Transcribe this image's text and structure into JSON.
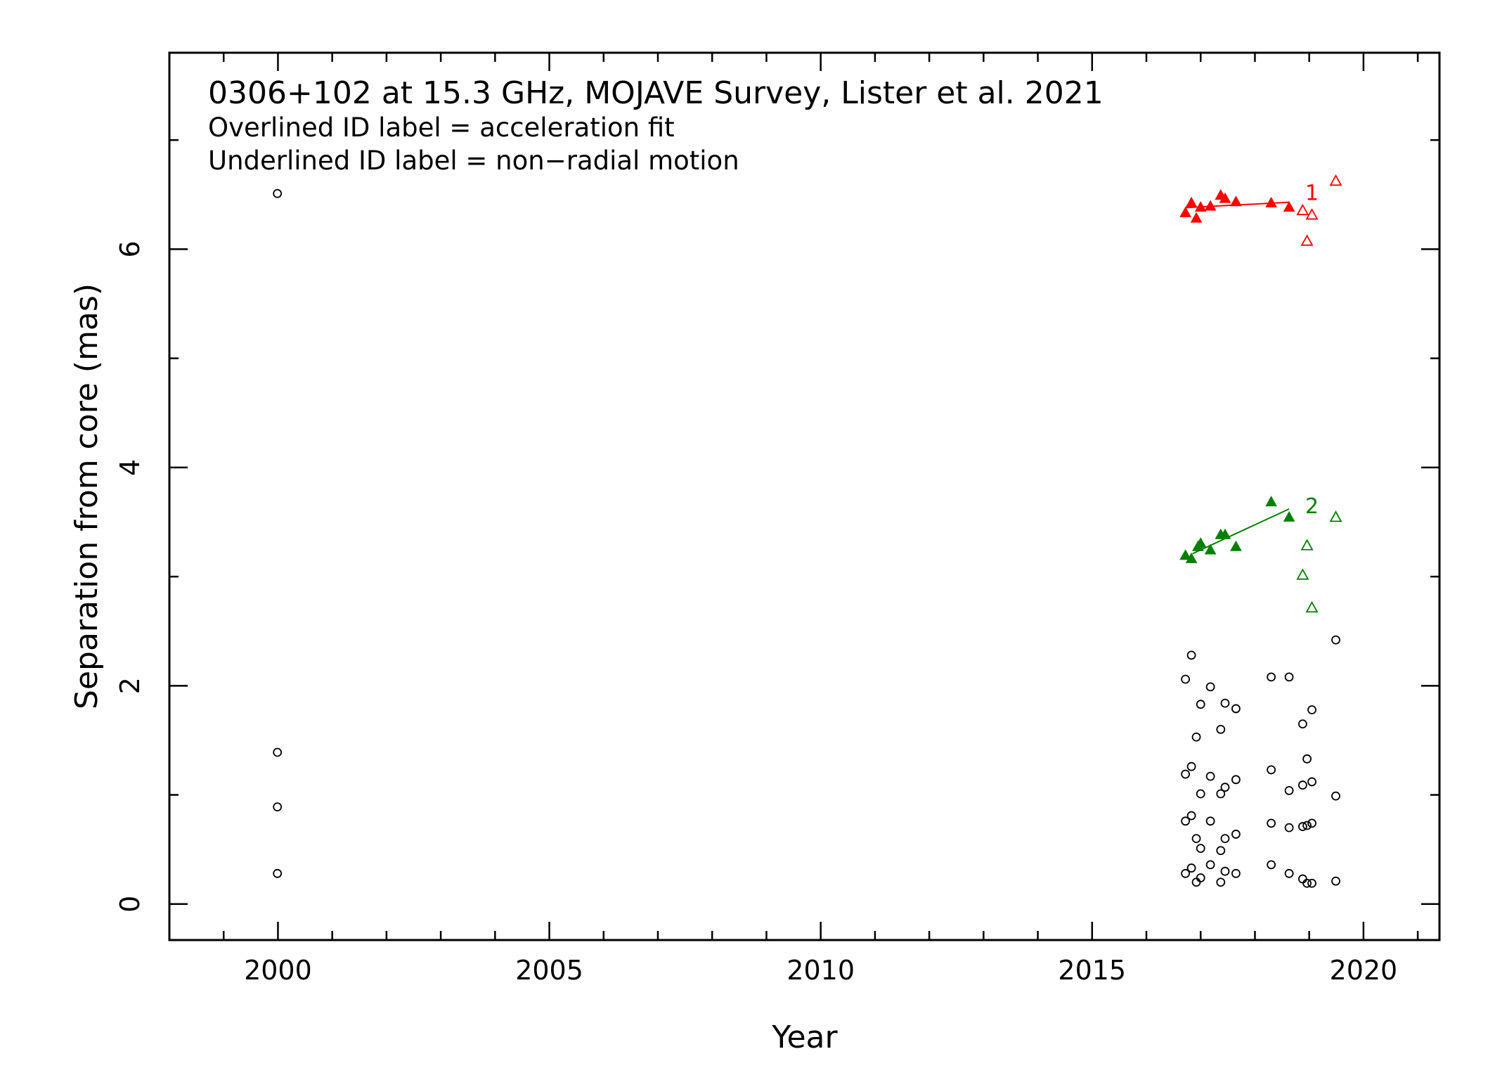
{
  "chart_data": {
    "type": "scatter",
    "title": "",
    "xlabel": "Year",
    "ylabel": "Separation from core (mas)",
    "xlim": [
      1998.0,
      2021.4
    ],
    "ylim": [
      -0.33,
      7.8
    ],
    "xticks": [
      2000,
      2005,
      2010,
      2015,
      2020
    ],
    "yticks": [
      0,
      2,
      4,
      6
    ],
    "grid": false,
    "annotations": [
      "0306+102 at 15.3 GHz, MOJAVE Survey, Lister et al. 2021",
      "Overlined ID label = acceleration fit",
      "Underlined ID label = non−radial motion"
    ],
    "series": [
      {
        "label": "1",
        "color": "#ff0000",
        "marker": "filled-triangle",
        "points": [
          [
            2016.72,
            6.33
          ],
          [
            2016.83,
            6.42
          ],
          [
            2016.92,
            6.28
          ],
          [
            2017.0,
            6.38
          ],
          [
            2017.18,
            6.39
          ],
          [
            2017.37,
            6.49
          ],
          [
            2017.45,
            6.46
          ],
          [
            2017.65,
            6.43
          ],
          [
            2018.3,
            6.42
          ],
          [
            2018.63,
            6.38
          ]
        ],
        "fit": [
          [
            2016.72,
            6.38
          ],
          [
            2018.63,
            6.43
          ]
        ]
      },
      {
        "label": "1",
        "color": "#ff0000",
        "marker": "open-triangle",
        "points": [
          [
            2018.88,
            6.35
          ],
          [
            2018.96,
            6.07
          ],
          [
            2019.05,
            6.31
          ],
          [
            2019.49,
            6.62
          ]
        ]
      },
      {
        "label": "2",
        "color": "#008000",
        "marker": "filled-triangle",
        "points": [
          [
            2016.72,
            3.19
          ],
          [
            2016.83,
            3.16
          ],
          [
            2016.95,
            3.27
          ],
          [
            2017.0,
            3.3
          ],
          [
            2017.18,
            3.24
          ],
          [
            2017.37,
            3.38
          ],
          [
            2017.45,
            3.38
          ],
          [
            2017.65,
            3.27
          ],
          [
            2018.3,
            3.68
          ],
          [
            2018.63,
            3.54
          ]
        ],
        "fit": [
          [
            2016.85,
            3.21
          ],
          [
            2018.63,
            3.62
          ]
        ]
      },
      {
        "label": "2",
        "color": "#008000",
        "marker": "open-triangle",
        "points": [
          [
            2018.88,
            3.01
          ],
          [
            2018.96,
            3.28
          ],
          [
            2019.05,
            2.71
          ],
          [
            2019.49,
            3.54
          ]
        ]
      },
      {
        "label": "",
        "color": "#000000",
        "marker": "open-circle",
        "points": [
          [
            1999.99,
            6.51
          ],
          [
            1999.99,
            1.39
          ],
          [
            1999.99,
            0.89
          ],
          [
            1999.99,
            0.28
          ],
          [
            2016.72,
            2.06
          ],
          [
            2016.72,
            1.19
          ],
          [
            2016.72,
            0.76
          ],
          [
            2016.72,
            0.28
          ],
          [
            2016.83,
            2.28
          ],
          [
            2016.83,
            1.26
          ],
          [
            2016.83,
            0.81
          ],
          [
            2016.83,
            0.33
          ],
          [
            2016.92,
            1.53
          ],
          [
            2016.92,
            0.6
          ],
          [
            2016.92,
            0.2
          ],
          [
            2017.0,
            1.83
          ],
          [
            2017.0,
            1.01
          ],
          [
            2017.0,
            0.51
          ],
          [
            2017.0,
            0.24
          ],
          [
            2017.18,
            1.99
          ],
          [
            2017.18,
            1.17
          ],
          [
            2017.18,
            0.76
          ],
          [
            2017.18,
            0.36
          ],
          [
            2017.37,
            1.6
          ],
          [
            2017.37,
            1.01
          ],
          [
            2017.37,
            0.49
          ],
          [
            2017.37,
            0.2
          ],
          [
            2017.45,
            1.84
          ],
          [
            2017.45,
            1.07
          ],
          [
            2017.45,
            0.6
          ],
          [
            2017.45,
            0.3
          ],
          [
            2017.65,
            1.79
          ],
          [
            2017.65,
            1.14
          ],
          [
            2017.65,
            0.64
          ],
          [
            2017.65,
            0.28
          ],
          [
            2018.3,
            2.08
          ],
          [
            2018.3,
            1.23
          ],
          [
            2018.3,
            0.74
          ],
          [
            2018.3,
            0.36
          ],
          [
            2018.63,
            2.08
          ],
          [
            2018.63,
            1.04
          ],
          [
            2018.63,
            0.7
          ],
          [
            2018.63,
            0.28
          ],
          [
            2018.88,
            1.65
          ],
          [
            2018.88,
            1.09
          ],
          [
            2018.88,
            0.71
          ],
          [
            2018.88,
            0.23
          ],
          [
            2018.96,
            1.33
          ],
          [
            2018.96,
            0.72
          ],
          [
            2018.96,
            0.19
          ],
          [
            2019.05,
            1.78
          ],
          [
            2019.05,
            1.12
          ],
          [
            2019.05,
            0.74
          ],
          [
            2019.05,
            0.19
          ],
          [
            2019.49,
            2.42
          ],
          [
            2019.49,
            0.99
          ],
          [
            2019.49,
            0.21
          ]
        ]
      }
    ]
  }
}
